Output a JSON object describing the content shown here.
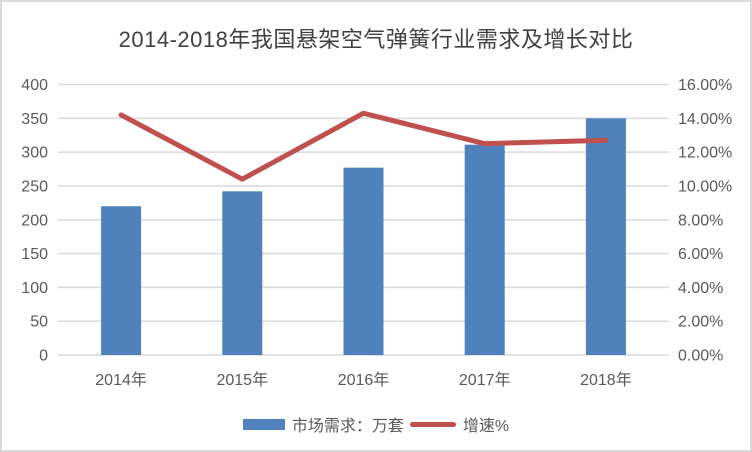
{
  "chart_data": {
    "type": "bar",
    "subtype": "bar-and-line-combo",
    "title": "2014-2018年我国悬架空气弹簧行业需求及增长对比",
    "categories": [
      "2014年",
      "2015年",
      "2016年",
      "2017年",
      "2018年"
    ],
    "series": [
      {
        "name": "市场需求：万套",
        "type": "bar",
        "axis": "left",
        "values": [
          220,
          242,
          277,
          311,
          350
        ],
        "color": "#4F81BD"
      },
      {
        "name": "增速%",
        "type": "line",
        "axis": "right",
        "values": [
          14.2,
          10.4,
          14.3,
          12.5,
          12.7
        ],
        "color": "#C0504D"
      }
    ],
    "left_axis": {
      "min": 0,
      "max": 400,
      "step": 50,
      "tick_labels": [
        "0",
        "50",
        "100",
        "150",
        "200",
        "250",
        "300",
        "350",
        "400"
      ]
    },
    "right_axis": {
      "min": 0,
      "max": 16,
      "step": 2,
      "tick_labels": [
        "0.00%",
        "2.00%",
        "4.00%",
        "6.00%",
        "8.00%",
        "10.00%",
        "12.00%",
        "14.00%",
        "16.00%"
      ]
    },
    "grid": true,
    "legend_position": "bottom"
  },
  "colors": {
    "bar": "#4F81BD",
    "line": "#C0504D",
    "gridline": "#d9d9d9",
    "axis_text": "#595959",
    "title_text": "#404040",
    "frame_border": "#d9d9d9",
    "background": "#ffffff"
  }
}
